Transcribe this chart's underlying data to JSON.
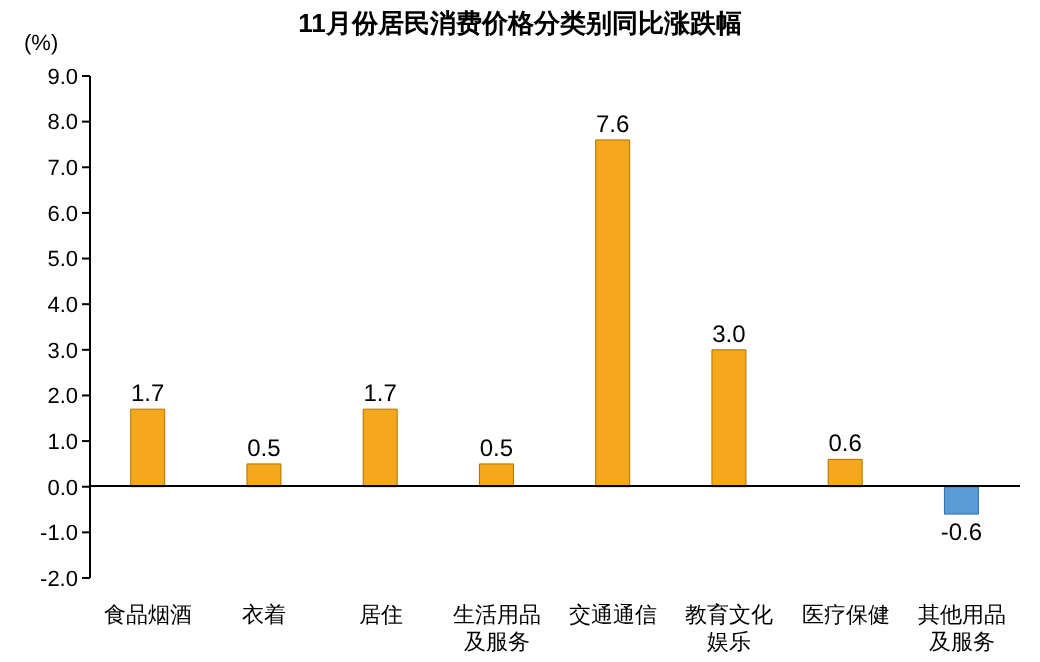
{
  "chart_data": {
    "type": "bar",
    "title": "11月份居民消费价格分类别同比涨跌幅",
    "ylabel": "(%)",
    "categories": [
      "食品烟酒",
      "衣着",
      "居住",
      "生活用品及服务",
      "交通通信",
      "教育文化娱乐",
      "医疗保健",
      "其他用品及服务"
    ],
    "values": [
      1.7,
      0.5,
      1.7,
      0.5,
      7.6,
      3.0,
      0.6,
      -0.6
    ],
    "colors": [
      "#f5a81c",
      "#f5a81c",
      "#f5a81c",
      "#f5a81c",
      "#f5a81c",
      "#f5a81c",
      "#f5a81c",
      "#5b9bd5"
    ],
    "value_labels": [
      "1.7",
      "0.5",
      "1.7",
      "0.5",
      "7.6",
      "3.0",
      "0.6",
      "-0.6"
    ],
    "ylim": [
      -2,
      9
    ],
    "yticks": [
      {
        "value": -2,
        "label": "-2.0"
      },
      {
        "value": -1,
        "label": "-1.0"
      },
      {
        "value": 0,
        "label": "0.0"
      },
      {
        "value": 1,
        "label": "1.0"
      },
      {
        "value": 2,
        "label": "2.0"
      },
      {
        "value": 3,
        "label": "3.0"
      },
      {
        "value": 4,
        "label": "4.0"
      },
      {
        "value": 5,
        "label": "5.0"
      },
      {
        "value": 6,
        "label": "6.0"
      },
      {
        "value": 7,
        "label": "7.0"
      },
      {
        "value": 8,
        "label": "8.0"
      },
      {
        "value": 9,
        "label": "9.0"
      }
    ],
    "grid": false,
    "legend": false
  }
}
